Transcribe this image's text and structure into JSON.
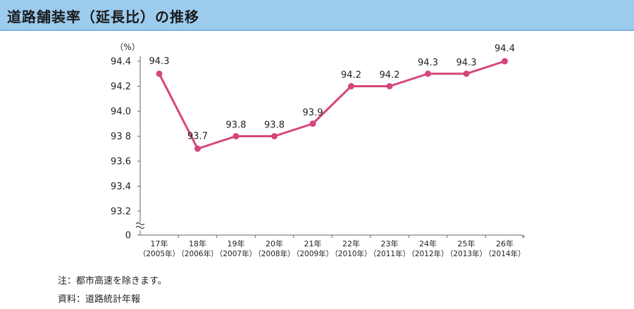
{
  "title": "道路舗装率（延長比）の推移",
  "notes": {
    "note": "注：都市高速を除きます。",
    "source": "資料：道路統計年報"
  },
  "colors": {
    "title_bg": "#9ccbee",
    "line": "#d6457d",
    "axis": "#666666"
  },
  "chart_data": {
    "type": "line",
    "unit_label": "（%）",
    "categories": [
      [
        "17年",
        "（2005年）"
      ],
      [
        "18年",
        "（2006年）"
      ],
      [
        "19年",
        "（2007年）"
      ],
      [
        "20年",
        "（2008年）"
      ],
      [
        "21年",
        "（2009年）"
      ],
      [
        "22年",
        "（2010年）"
      ],
      [
        "23年",
        "（2011年）"
      ],
      [
        "24年",
        "（2012年）"
      ],
      [
        "25年",
        "（2013年）"
      ],
      [
        "26年",
        "（2014年）"
      ]
    ],
    "values": [
      94.3,
      93.7,
      93.8,
      93.8,
      93.9,
      94.2,
      94.2,
      94.3,
      94.3,
      94.4
    ],
    "value_labels": [
      "94.3",
      "93.7",
      "93.8",
      "93.8",
      "93.9",
      "94.2",
      "94.2",
      "94.3",
      "94.3",
      "94.4"
    ],
    "y_ticks": [
      93.2,
      93.4,
      93.6,
      93.8,
      94.0,
      94.2,
      94.4
    ],
    "y_tick_labels": [
      "93.2",
      "93.4",
      "93.6",
      "93 8",
      "94.0",
      "94.2",
      "94.4"
    ],
    "y_zero_label": "0",
    "ylim": [
      93.2,
      94.4
    ],
    "axis_break": true,
    "grid": false,
    "legend": "none"
  }
}
